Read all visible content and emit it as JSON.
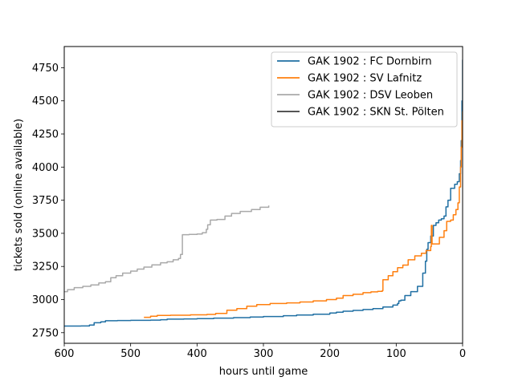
{
  "chart_data": {
    "type": "line",
    "title": "",
    "xlabel": "hours until game",
    "ylabel": "tickets sold (online available)",
    "xlim": [
      600,
      0
    ],
    "ylim": [
      2670,
      4910
    ],
    "x_inverted": true,
    "xticks": [
      600,
      500,
      400,
      300,
      200,
      100,
      0
    ],
    "yticks": [
      2750,
      3000,
      3250,
      3500,
      3750,
      4000,
      4250,
      4500,
      4750
    ],
    "grid": false,
    "legend_position": "upper-right",
    "series": [
      {
        "name": "GAK 1902 : FC Dornbirn",
        "color": "#1f6fa3",
        "step": true,
        "points": [
          [
            600,
            2800
          ],
          [
            575,
            2801
          ],
          [
            562,
            2808
          ],
          [
            555,
            2825
          ],
          [
            545,
            2832
          ],
          [
            538,
            2840
          ],
          [
            520,
            2842
          ],
          [
            500,
            2843
          ],
          [
            470,
            2845
          ],
          [
            455,
            2848
          ],
          [
            445,
            2852
          ],
          [
            420,
            2854
          ],
          [
            400,
            2856
          ],
          [
            375,
            2860
          ],
          [
            345,
            2864
          ],
          [
            320,
            2868
          ],
          [
            300,
            2872
          ],
          [
            270,
            2878
          ],
          [
            250,
            2884
          ],
          [
            225,
            2890
          ],
          [
            200,
            2898
          ],
          [
            190,
            2905
          ],
          [
            180,
            2912
          ],
          [
            165,
            2918
          ],
          [
            150,
            2925
          ],
          [
            135,
            2932
          ],
          [
            120,
            2944
          ],
          [
            105,
            2958
          ],
          [
            98,
            2970
          ],
          [
            96,
            2990
          ],
          [
            93,
            2995
          ],
          [
            87,
            3030
          ],
          [
            78,
            3060
          ],
          [
            68,
            3100
          ],
          [
            60,
            3200
          ],
          [
            56,
            3290
          ],
          [
            54,
            3380
          ],
          [
            52,
            3430
          ],
          [
            48,
            3480
          ],
          [
            44,
            3560
          ],
          [
            40,
            3580
          ],
          [
            36,
            3600
          ],
          [
            32,
            3610
          ],
          [
            28,
            3630
          ],
          [
            25,
            3700
          ],
          [
            22,
            3750
          ],
          [
            18,
            3840
          ],
          [
            12,
            3870
          ],
          [
            8,
            3890
          ],
          [
            5,
            3950
          ],
          [
            3,
            4050
          ],
          [
            2,
            4200
          ],
          [
            1,
            4500
          ],
          [
            0,
            4810
          ]
        ]
      },
      {
        "name": "GAK 1902 : SV Lafnitz",
        "color": "#ff7f0e",
        "step": true,
        "points": [
          [
            480,
            2866
          ],
          [
            470,
            2874
          ],
          [
            460,
            2880
          ],
          [
            440,
            2882
          ],
          [
            410,
            2885
          ],
          [
            385,
            2888
          ],
          [
            372,
            2896
          ],
          [
            355,
            2920
          ],
          [
            340,
            2932
          ],
          [
            325,
            2950
          ],
          [
            310,
            2962
          ],
          [
            290,
            2970
          ],
          [
            265,
            2975
          ],
          [
            245,
            2982
          ],
          [
            225,
            2990
          ],
          [
            205,
            3000
          ],
          [
            190,
            3010
          ],
          [
            180,
            3030
          ],
          [
            165,
            3040
          ],
          [
            150,
            3052
          ],
          [
            138,
            3058
          ],
          [
            128,
            3062
          ],
          [
            121,
            3068
          ],
          [
            120,
            3150
          ],
          [
            112,
            3180
          ],
          [
            105,
            3210
          ],
          [
            98,
            3240
          ],
          [
            90,
            3260
          ],
          [
            82,
            3300
          ],
          [
            72,
            3330
          ],
          [
            62,
            3350
          ],
          [
            55,
            3370
          ],
          [
            48,
            3400
          ],
          [
            47,
            3560
          ],
          [
            46,
            3420
          ],
          [
            35,
            3470
          ],
          [
            28,
            3520
          ],
          [
            24,
            3590
          ],
          [
            18,
            3600
          ],
          [
            14,
            3640
          ],
          [
            10,
            3680
          ],
          [
            7,
            3730
          ],
          [
            5,
            3850
          ],
          [
            3,
            4000
          ],
          [
            2,
            4150
          ],
          [
            1,
            4350
          ],
          [
            0,
            4420
          ]
        ]
      },
      {
        "name": "GAK 1902 : DSV Leoben",
        "color": "#a9a9a9",
        "step": true,
        "points": [
          [
            600,
            3060
          ],
          [
            595,
            3075
          ],
          [
            585,
            3090
          ],
          [
            572,
            3100
          ],
          [
            560,
            3110
          ],
          [
            548,
            3125
          ],
          [
            538,
            3135
          ],
          [
            530,
            3165
          ],
          [
            522,
            3180
          ],
          [
            512,
            3200
          ],
          [
            500,
            3215
          ],
          [
            490,
            3230
          ],
          [
            480,
            3245
          ],
          [
            468,
            3262
          ],
          [
            455,
            3278
          ],
          [
            445,
            3285
          ],
          [
            436,
            3300
          ],
          [
            428,
            3310
          ],
          [
            425,
            3340
          ],
          [
            422,
            3490
          ],
          [
            412,
            3492
          ],
          [
            400,
            3495
          ],
          [
            392,
            3505
          ],
          [
            386,
            3530
          ],
          [
            384,
            3565
          ],
          [
            380,
            3600
          ],
          [
            370,
            3605
          ],
          [
            358,
            3630
          ],
          [
            348,
            3650
          ],
          [
            335,
            3665
          ],
          [
            318,
            3680
          ],
          [
            305,
            3697
          ],
          [
            292,
            3710
          ]
        ]
      },
      {
        "name": "GAK 1902 : SKN St. Pölten",
        "color": "#3d3d3d",
        "step": true,
        "points": []
      }
    ]
  }
}
